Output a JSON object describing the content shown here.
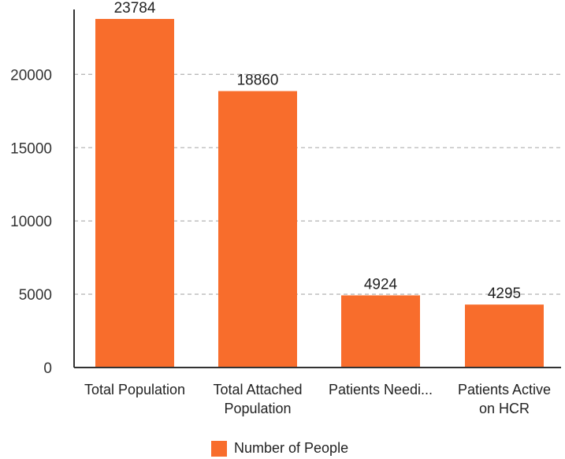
{
  "chart_data": {
    "type": "bar",
    "categories": [
      [
        "Total Population"
      ],
      [
        "Total Attached",
        "Population"
      ],
      [
        "Patients Needi..."
      ],
      [
        "Patients Active",
        "on HCR"
      ]
    ],
    "series": [
      {
        "name": "Number of People",
        "values": [
          23784,
          18860,
          4924,
          4295
        ]
      }
    ],
    "data_labels": [
      "23784",
      "18860",
      "4924",
      "4295"
    ],
    "yticks": [
      {
        "value": 0,
        "label": "0"
      },
      {
        "value": 5000,
        "label": "5000"
      },
      {
        "value": 10000,
        "label": "10000"
      },
      {
        "value": 15000,
        "label": "15000"
      },
      {
        "value": 20000,
        "label": "20000"
      }
    ],
    "ylim": [
      0,
      24000
    ],
    "grid": true,
    "legend_position": "bottom",
    "bar_color": "#f86d2c"
  }
}
